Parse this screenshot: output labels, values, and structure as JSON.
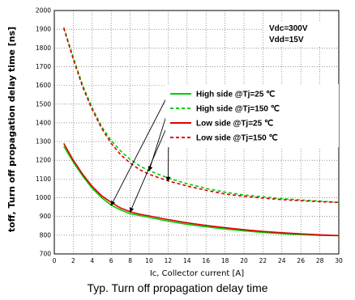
{
  "chart_data": {
    "type": "line",
    "caption": "Typ. Turn off propagation delay time",
    "xlabel": "Ic, Collector current [A]",
    "ylabel": "toff, Turn off propagation delay time [ns]",
    "xlim": [
      0,
      30
    ],
    "ylim": [
      700,
      2000
    ],
    "xticks": [
      0,
      2,
      4,
      6,
      8,
      10,
      12,
      14,
      16,
      18,
      20,
      22,
      24,
      26,
      28,
      30
    ],
    "yticks": [
      700,
      800,
      900,
      1000,
      1100,
      1200,
      1300,
      1400,
      1500,
      1600,
      1700,
      1800,
      1900,
      2000
    ],
    "grid": true,
    "conditions": [
      "Vdc=300V",
      "Vdd=15V"
    ],
    "legend_position": "right",
    "series": [
      {
        "name": "High side @Tj=25 ℃",
        "color": "#00cc00",
        "dash": "solid",
        "x": [
          1,
          2,
          3,
          4,
          5,
          6,
          7,
          8,
          9,
          10,
          12,
          14,
          16,
          18,
          20,
          22,
          24,
          26,
          28,
          30
        ],
        "y": [
          1275,
          1190,
          1115,
          1050,
          1000,
          960,
          935,
          915,
          905,
          895,
          875,
          858,
          845,
          833,
          823,
          815,
          808,
          803,
          799,
          797
        ]
      },
      {
        "name": "High side @Tj=150 ℃",
        "color": "#00cc00",
        "dash": "dashed",
        "x": [
          1,
          2,
          3,
          4,
          5,
          6,
          7,
          8,
          9,
          10,
          12,
          14,
          16,
          18,
          20,
          22,
          24,
          26,
          28,
          30
        ],
        "y": [
          1910,
          1750,
          1600,
          1480,
          1380,
          1305,
          1250,
          1205,
          1170,
          1145,
          1105,
          1075,
          1050,
          1030,
          1015,
          1005,
          995,
          988,
          982,
          975
        ]
      },
      {
        "name": "Low side @Tj=25 ℃",
        "color": "#dd0000",
        "dash": "solid",
        "x": [
          1,
          2,
          3,
          4,
          5,
          6,
          7,
          8,
          9,
          10,
          12,
          14,
          16,
          18,
          20,
          22,
          24,
          26,
          28,
          30
        ],
        "y": [
          1290,
          1200,
          1125,
          1060,
          1010,
          975,
          945,
          925,
          912,
          903,
          883,
          866,
          852,
          840,
          829,
          820,
          813,
          807,
          802,
          798
        ]
      },
      {
        "name": "Low side @Tj=150 ℃",
        "color": "#dd0000",
        "dash": "dashed",
        "x": [
          1,
          2,
          3,
          4,
          5,
          6,
          7,
          8,
          9,
          10,
          12,
          14,
          16,
          18,
          20,
          22,
          24,
          26,
          28,
          30
        ],
        "y": [
          1905,
          1740,
          1590,
          1470,
          1370,
          1290,
          1230,
          1185,
          1150,
          1125,
          1090,
          1063,
          1040,
          1020,
          1008,
          998,
          990,
          984,
          979,
          975
        ]
      }
    ]
  }
}
